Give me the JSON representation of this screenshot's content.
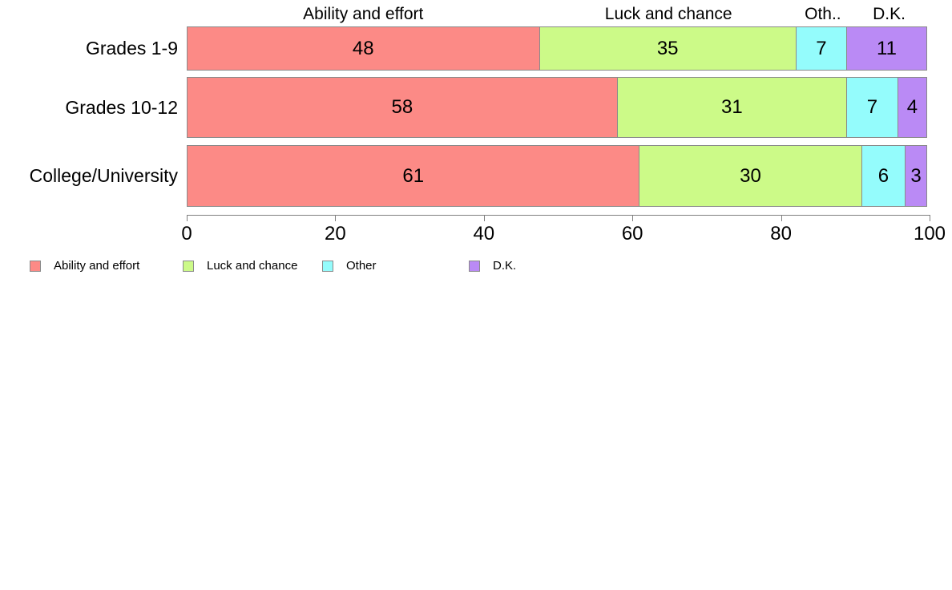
{
  "chart_data": {
    "type": "bar",
    "orientation": "horizontal",
    "stacked": true,
    "title": "",
    "categories": [
      "Grades 1-9",
      "Grades 10-12",
      "College/University"
    ],
    "series": [
      {
        "name": "Ability and effort",
        "color": "#fc8a86",
        "values": [
          48,
          58,
          61
        ]
      },
      {
        "name": "Luck and chance",
        "color": "#ccfa88",
        "values": [
          35,
          31,
          30
        ]
      },
      {
        "name": "Other",
        "color": "#94fcfc",
        "values": [
          7,
          7,
          6
        ]
      },
      {
        "name": "D.K.",
        "color": "#ba8af5",
        "values": [
          11,
          4,
          3
        ]
      }
    ],
    "column_headers": [
      "Ability and effort",
      "Luck and chance",
      "Oth..",
      "D.K."
    ],
    "x_ticks": [
      0,
      20,
      40,
      60,
      80,
      100
    ],
    "xlim": [
      0,
      100
    ],
    "grid": false,
    "legend_position": "bottom",
    "legend": [
      {
        "label": "Ability and effort",
        "color": "#fc8a86"
      },
      {
        "label": "Luck and chance",
        "color": "#ccfa88"
      },
      {
        "label": "Other",
        "color": "#94fcfc"
      },
      {
        "label": "D.K.",
        "color": "#ba8af5"
      }
    ],
    "colors": {
      "segment_border": "#8a8a8a",
      "axis": "#7f7f7f",
      "text": "#000000",
      "background": "#ffffff"
    }
  }
}
